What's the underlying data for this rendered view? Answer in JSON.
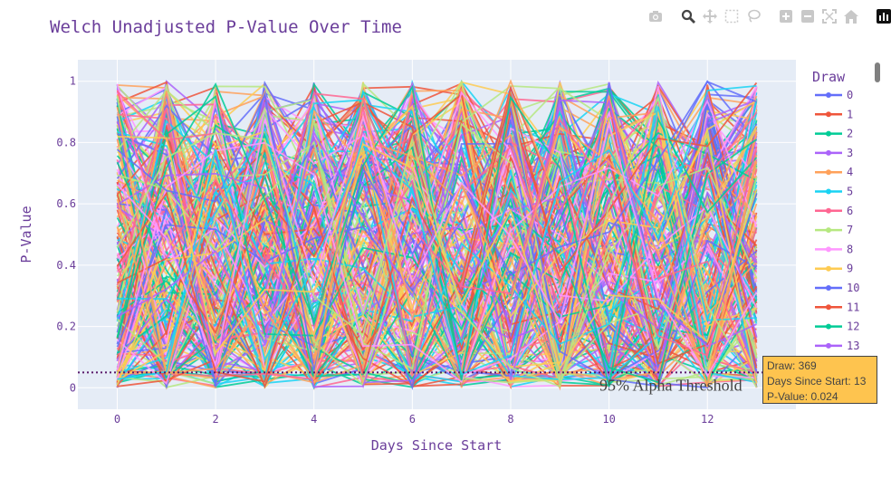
{
  "toolbar": {
    "buttons": [
      "camera-icon",
      "zoom-icon",
      "pan-icon",
      "box-select-icon",
      "lasso-icon",
      "zoom-in-icon",
      "zoom-out-icon",
      "autoscale-icon",
      "reset-axes-icon",
      "plotly-logo-icon"
    ]
  },
  "colors": {
    "title": "#6a3d9a",
    "plot_bg": "#e5ecf6",
    "grid": "#ffffff",
    "threshold": "#5b1a6b",
    "tooltip_bg": "#fec44f",
    "palette": [
      "#636efa",
      "#ef553b",
      "#00cc96",
      "#ab63fa",
      "#ffa15a",
      "#19d3f3",
      "#ff6692",
      "#b6e880",
      "#ff97ff",
      "#fecb52"
    ]
  },
  "chart_data": {
    "type": "line",
    "title": "Welch Unadjusted P-Value Over Time",
    "xlabel": "Days Since Start",
    "ylabel": "P-Value",
    "xlim": [
      -0.8,
      13.8
    ],
    "ylim": [
      -0.07,
      1.07
    ],
    "xticks": [
      0,
      2,
      4,
      6,
      8,
      10,
      12
    ],
    "yticks": [
      0,
      0.2,
      0.4,
      0.6,
      0.8,
      1
    ],
    "x": [
      0,
      1,
      2,
      3,
      4,
      5,
      6,
      7,
      8,
      9,
      10,
      11,
      12,
      13
    ],
    "series_count_drawn": 260,
    "legend_title": "Draw",
    "legend": [
      "0",
      "1",
      "2",
      "3",
      "4",
      "5",
      "6",
      "7",
      "8",
      "9",
      "10",
      "11",
      "12",
      "13"
    ],
    "legend_placement": "right",
    "grid": true,
    "threshold": {
      "y": 0.05,
      "label": "95% Alpha Threshold"
    },
    "hover": {
      "draw": "Draw: 369",
      "day": "Days Since Start: 13",
      "pvalue": "P-Value: 0.024"
    }
  }
}
